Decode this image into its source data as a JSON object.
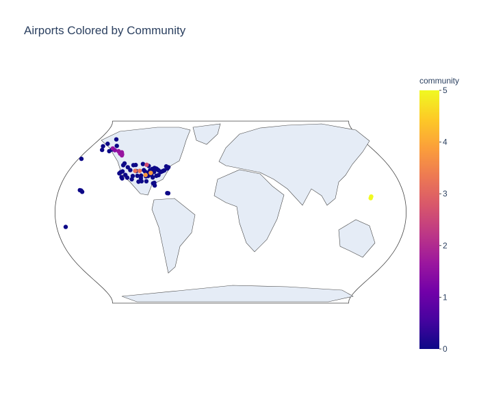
{
  "chart_data": {
    "type": "scattergeo",
    "title": "Airports Colored by Community",
    "colorbar_title": "community",
    "clim": [
      0,
      5
    ],
    "colorbar_ticks": [
      0,
      1,
      2,
      3,
      4,
      5
    ],
    "colorscale": [
      "#0d0887",
      "#46039f",
      "#7201a8",
      "#9c179e",
      "#bd3786",
      "#d8576b",
      "#ed7953",
      "#fb9f3a",
      "#fdca26",
      "#f0f921"
    ],
    "lon": [
      -122.4,
      -118.4,
      -122.3,
      -117.2,
      -112,
      -115.1,
      -111.9,
      -104.7,
      -106.6,
      -97,
      -95.3,
      -98.5,
      -90.2,
      -84.4,
      -80.3,
      -81.3,
      -82.5,
      -87.9,
      -93.2,
      -90.4,
      -94.7,
      -86.7,
      -83.3,
      -81.8,
      -80.2,
      -75.2,
      -73.8,
      -71,
      -77.5,
      -80.9,
      -78.8,
      -96.8,
      -100.7,
      -108.5,
      -116.2,
      -122.6,
      -119.8,
      -121.6,
      -76.7,
      -70.3,
      -73.1,
      -89.7,
      -92.2,
      -97.6,
      -101.7,
      -106.4,
      -85.7,
      -84.7,
      -89.9,
      -111,
      -66,
      -64.9,
      -157.9,
      -156.4,
      -155,
      -170.7,
      -176.6,
      -149.9,
      -147.9,
      -156.8,
      -162.6,
      -165.4,
      -161.8,
      -151.5,
      -134.6,
      -135.4,
      -131.7,
      -132.4,
      -139.7,
      -150.1,
      -145.5,
      -93,
      -88,
      -106,
      -101,
      -96,
      144.8,
      145.7
    ],
    "lat": [
      37.6,
      33.9,
      47.4,
      32.7,
      33.4,
      36.1,
      40.8,
      39.8,
      35,
      32.9,
      29.9,
      29.5,
      29.9,
      33.6,
      25.8,
      28.4,
      27.9,
      41.9,
      44.9,
      38.7,
      39.3,
      36.1,
      42.2,
      41.4,
      40.5,
      39.9,
      40.6,
      42.4,
      38.9,
      35.2,
      35.9,
      40.8,
      46.8,
      45.8,
      43.6,
      45.6,
      39.5,
      38.7,
      39.2,
      43.6,
      44.5,
      40.7,
      34.7,
      35.4,
      35.2,
      31.8,
      42.9,
      39,
      35,
      45.7,
      18.4,
      18.3,
      21.3,
      20.9,
      19.7,
      -14.3,
      51.9,
      61.2,
      64.8,
      71.3,
      66.9,
      64.5,
      60.8,
      59.6,
      58.4,
      57.1,
      55.4,
      56.5,
      59.5,
      62.3,
      60.5,
      36,
      38,
      40,
      40,
      46,
      13.5,
      15.1
    ],
    "community": [
      0,
      0,
      0,
      0,
      0,
      0,
      0,
      0,
      0,
      0,
      0,
      0,
      0,
      0,
      0,
      0,
      0,
      0,
      0,
      0,
      0,
      0,
      0,
      0,
      0,
      0,
      0,
      0,
      0,
      0,
      0,
      0,
      0,
      0,
      0,
      0,
      0,
      0,
      0,
      0,
      0,
      0,
      0,
      0,
      0,
      0,
      0,
      0,
      0,
      0,
      0,
      0,
      0,
      0,
      0,
      0,
      0,
      0,
      0,
      0,
      0,
      0,
      0,
      0,
      1.6,
      1.6,
      1.6,
      1.6,
      1.6,
      1.6,
      1.4,
      3.8,
      3.8,
      3.2,
      3.2,
      2.6,
      5,
      5
    ]
  }
}
